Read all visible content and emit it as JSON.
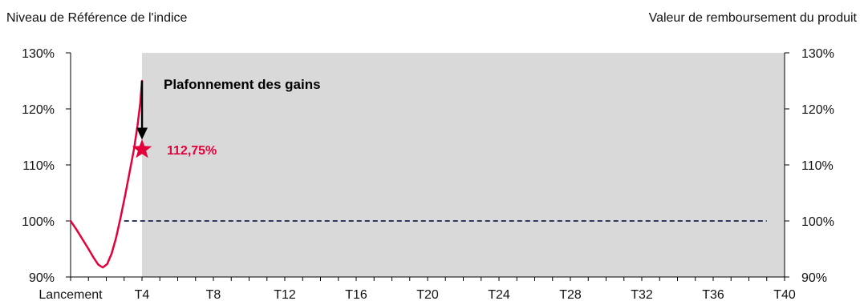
{
  "chart_data": {
    "type": "line",
    "left_axis_title": "Niveau de Référence de l'indice",
    "right_axis_title": "Valeur de remboursement du produit",
    "ylim": [
      90,
      130
    ],
    "y_ticks": [
      "90%",
      "100%",
      "110%",
      "120%",
      "130%"
    ],
    "x_range": [
      0,
      40
    ],
    "x_ticks": [
      {
        "q": 0,
        "label": "Lancement"
      },
      {
        "q": 4,
        "label": "T4"
      },
      {
        "q": 8,
        "label": "T8"
      },
      {
        "q": 12,
        "label": "T12"
      },
      {
        "q": 16,
        "label": "T16"
      },
      {
        "q": 20,
        "label": "T20"
      },
      {
        "q": 24,
        "label": "T24"
      },
      {
        "q": 28,
        "label": "T28"
      },
      {
        "q": 32,
        "label": "T32"
      },
      {
        "q": 36,
        "label": "T36"
      },
      {
        "q": 40,
        "label": "T40"
      }
    ],
    "index_series": {
      "color": "#e4003a",
      "points": [
        [
          0,
          100
        ],
        [
          0.3,
          98.6
        ],
        [
          0.65,
          96.8
        ],
        [
          1.0,
          95.0
        ],
        [
          1.3,
          93.4
        ],
        [
          1.55,
          92.2
        ],
        [
          1.8,
          91.7
        ],
        [
          2.05,
          92.3
        ],
        [
          2.3,
          94.2
        ],
        [
          2.55,
          97.0
        ],
        [
          2.8,
          100.6
        ],
        [
          3.05,
          104.5
        ],
        [
          3.3,
          108.6
        ],
        [
          3.55,
          112.8
        ],
        [
          3.75,
          117.0
        ],
        [
          3.9,
          121.0
        ],
        [
          4.0,
          125.0
        ]
      ]
    },
    "capital_line": {
      "value": 100,
      "from": 3,
      "to": 39,
      "color": "#2f3b5e",
      "style": "dashed"
    },
    "shaded_region": {
      "from": 4,
      "to": 40,
      "color": "#d9d9d9"
    },
    "annotations": {
      "cap_label": "Plafonnement des gains",
      "arrow_x": 4,
      "arrow_from": 125,
      "arrow_to": 114.5,
      "star_x": 4,
      "star_y": 112.75,
      "star_label": "112,75%",
      "star_color": "#e4003a"
    }
  }
}
